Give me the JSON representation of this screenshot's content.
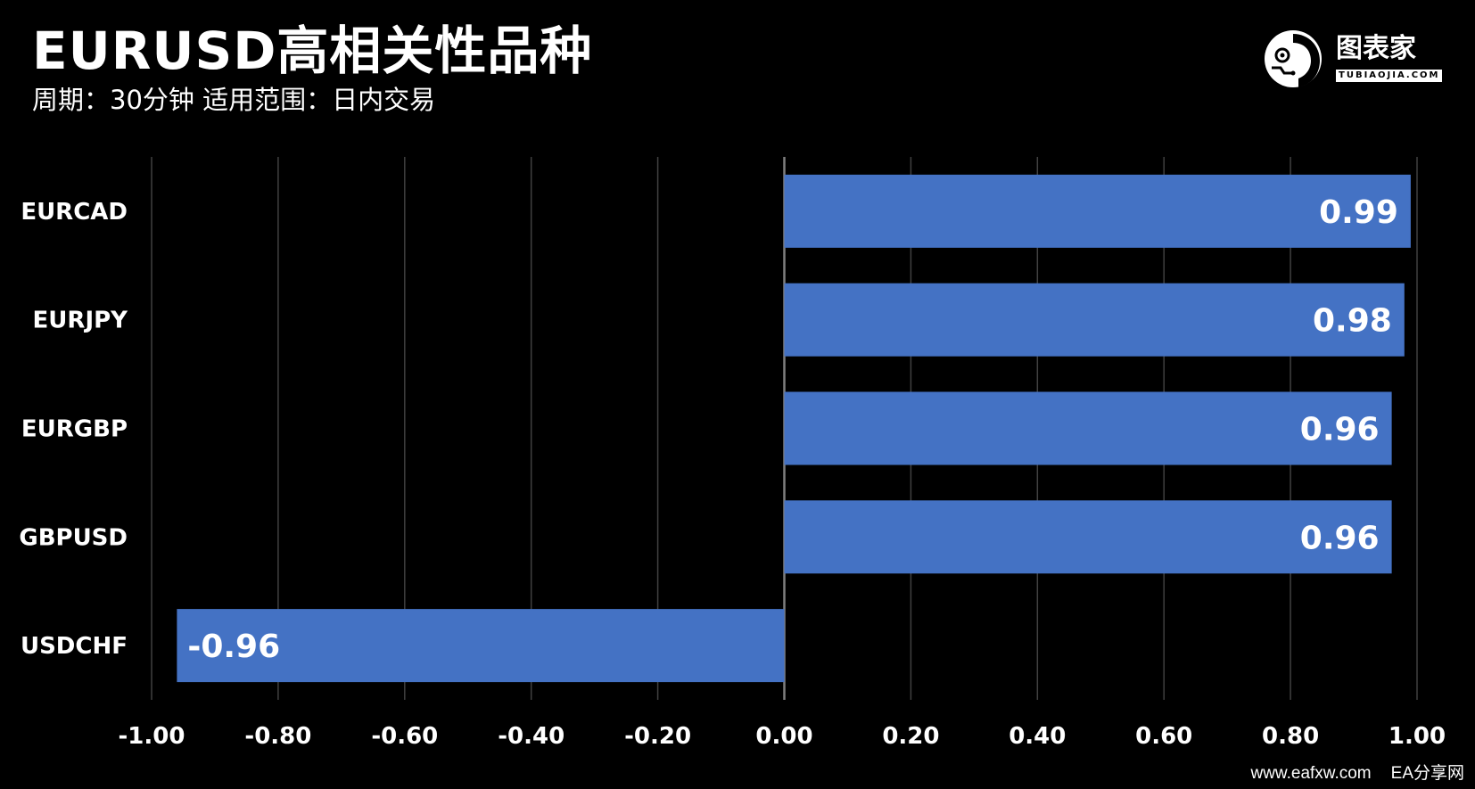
{
  "title": "EURUSD高相关性品种",
  "subtitle": "周期：30分钟  适用范围：日内交易",
  "logo": {
    "text": "图表家",
    "sub": "TUBIAOJIA.COM"
  },
  "footer": {
    "site": "www.eafxw.com",
    "name": "EA分享网"
  },
  "colors": {
    "background": "#000000",
    "bar": "#4472C4",
    "grid": "#404040",
    "text": "#ffffff"
  },
  "chart_data": {
    "type": "bar",
    "orientation": "horizontal",
    "categories": [
      "EURCAD",
      "EURJPY",
      "EURGBP",
      "GBPUSD",
      "USDCHF"
    ],
    "values": [
      0.99,
      0.98,
      0.96,
      0.96,
      -0.96
    ],
    "value_labels": [
      "0.99",
      "0.98",
      "0.96",
      "0.96",
      "-0.96"
    ],
    "xlim": [
      -1.0,
      1.0
    ],
    "xticks": [
      "-1.00",
      "-0.80",
      "-0.60",
      "-0.40",
      "-0.20",
      "0.00",
      "0.20",
      "0.40",
      "0.60",
      "0.80",
      "1.00"
    ],
    "xtick_values": [
      -1.0,
      -0.8,
      -0.6,
      -0.4,
      -0.2,
      0.0,
      0.2,
      0.4,
      0.6,
      0.8,
      1.0
    ],
    "grid": true,
    "legend": "none"
  }
}
